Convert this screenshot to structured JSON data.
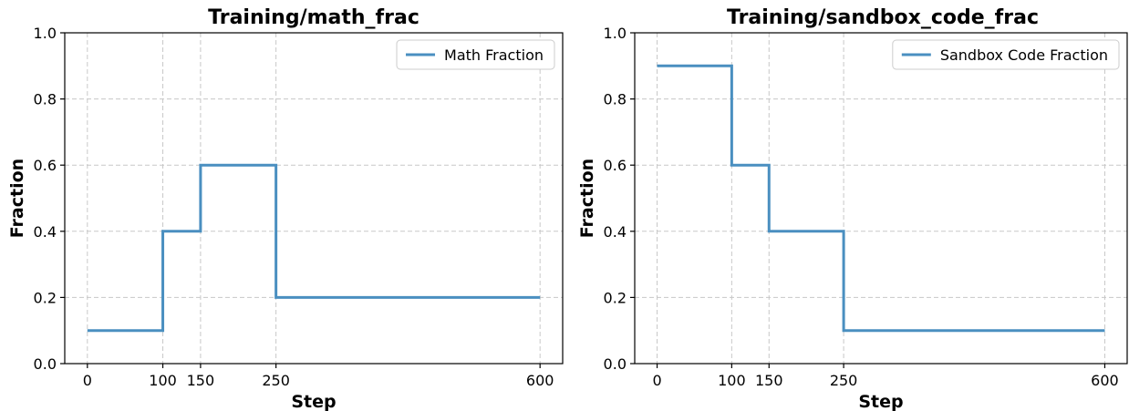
{
  "chart_data": [
    {
      "type": "line",
      "step": true,
      "title": "Training/math_frac",
      "xlabel": "Step",
      "ylabel": "Fraction",
      "xticks": [
        0,
        100,
        150,
        250,
        600
      ],
      "yticks": [
        0.0,
        0.2,
        0.4,
        0.6,
        0.8,
        1.0
      ],
      "ytick_labels": [
        "0.0",
        "0.2",
        "0.4",
        "0.6",
        "0.8",
        "1.0"
      ],
      "xlim": [
        -30,
        630
      ],
      "ylim": [
        0,
        1
      ],
      "grid": true,
      "legend_position": "top-right",
      "series": [
        {
          "name": "Math Fraction",
          "color": "#4a8fc0",
          "x": [
            0,
            100,
            150,
            250,
            600
          ],
          "y": [
            0.1,
            0.4,
            0.6,
            0.2,
            0.2
          ]
        }
      ]
    },
    {
      "type": "line",
      "step": true,
      "title": "Training/sandbox_code_frac",
      "xlabel": "Step",
      "ylabel": "Fraction",
      "xticks": [
        0,
        100,
        150,
        250,
        600
      ],
      "yticks": [
        0.0,
        0.2,
        0.4,
        0.6,
        0.8,
        1.0
      ],
      "ytick_labels": [
        "0.0",
        "0.2",
        "0.4",
        "0.6",
        "0.8",
        "1.0"
      ],
      "xlim": [
        -30,
        630
      ],
      "ylim": [
        0,
        1
      ],
      "grid": true,
      "legend_position": "top-right",
      "series": [
        {
          "name": "Sandbox Code Fraction",
          "color": "#4a8fc0",
          "x": [
            0,
            100,
            150,
            250,
            600
          ],
          "y": [
            0.9,
            0.6,
            0.4,
            0.1,
            0.1
          ]
        }
      ]
    }
  ]
}
